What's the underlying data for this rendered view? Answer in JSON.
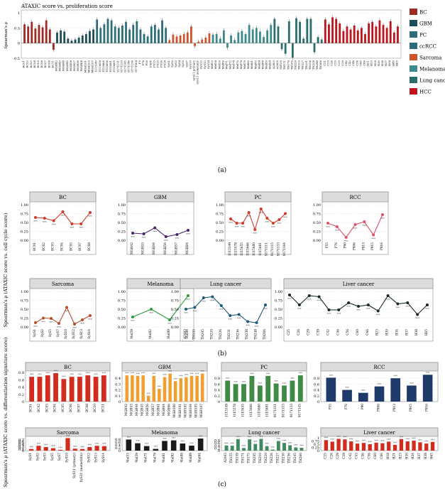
{
  "panel_labels": {
    "a": "(a)",
    "b": "(b)",
    "c": "(c)"
  },
  "colors": {
    "BC": "#9e2a24",
    "GBM": "#1c4e57",
    "PC": "#2d6e78",
    "ccRCC": "#2b6d7a",
    "Sarcoma": "#d0542b",
    "Melanoma": "#3d8a8a",
    "Lung cancer": "#2a6e6c",
    "HCC": "#c0141c"
  },
  "legend_a": [
    {
      "name": "BC",
      "color": "#9e2a24"
    },
    {
      "name": "GBM",
      "color": "#1c4e57"
    },
    {
      "name": "PC",
      "color": "#2d6e78"
    },
    {
      "name": "ccRCC",
      "color": "#2b6d7a"
    },
    {
      "name": "Sarcoma",
      "color": "#d0542b"
    },
    {
      "name": "Melanoma",
      "color": "#3d8a8a"
    },
    {
      "name": "Lung cancer",
      "color": "#2a6e6c"
    },
    {
      "name": "HCC",
      "color": "#c0141c"
    }
  ],
  "chart_data": [
    {
      "id": "a",
      "type": "bar",
      "title": "ATAXIC score vs. proliferation score",
      "ylabel": "Spearman's ρ",
      "ylim": [
        -0.5,
        1.0
      ],
      "yticks": [
        -0.5,
        0,
        0.5,
        1.0
      ],
      "groups": [
        {
          "name": "BC",
          "categories": [
            "BC01",
            "BC02",
            "BC03",
            "BC04",
            "BC05",
            "BC06",
            "BC07",
            "BC08"
          ],
          "values": [
            0.62,
            0.55,
            0.7,
            0.48,
            0.6,
            0.52,
            0.75,
            0.45
          ]
        },
        {
          "name": "BC",
          "categories": [
            "BC11"
          ],
          "values": [
            -0.22
          ]
        },
        {
          "name": "GBM",
          "categories": [
            "MGH42",
            "MGH43",
            "MGH44",
            "MGH45",
            "MGH56",
            "MGH57",
            "MGH58",
            "MGH64",
            "MGH101",
            "MGH103",
            "MGH107"
          ],
          "values": [
            0.35,
            0.42,
            0.38,
            0.15,
            0.08,
            0.12,
            0.18,
            0.25,
            0.3,
            0.4,
            0.45
          ]
        },
        {
          "name": "PC",
          "categories": [
            "1113149",
            "1113658",
            "1113666",
            "1115656",
            "1115681",
            "1115689",
            "9171111",
            "9171133",
            "9171145",
            "9171146",
            "9171156",
            "9171164"
          ],
          "values": [
            0.78,
            0.5,
            0.62,
            0.8,
            0.75,
            0.55,
            0.5,
            0.58,
            0.7,
            0.45,
            0.6,
            0.72
          ]
        },
        {
          "name": "ccRCC",
          "categories": [
            "P5",
            "P76",
            "P90",
            "P906",
            "P913",
            "P915",
            "P916",
            "P918"
          ],
          "values": [
            0.45,
            0.3,
            0.22,
            0.55,
            0.6,
            0.45,
            0.75,
            0.5
          ]
        },
        {
          "name": "Sarcoma",
          "categories": [
            "SyS1",
            "SyS2",
            "SyS3",
            "SyS4",
            "SyS5",
            "SyS7",
            "SyS10",
            "SyS11 primary",
            "SyS11 metastatic",
            "SyS12",
            "SyS13",
            "SyS14"
          ],
          "values": [
            0.1,
            0.28,
            0.22,
            0.25,
            0.3,
            0.35,
            0.55,
            -0.1,
            0.05,
            0.12,
            0.18,
            0.32
          ]
        },
        {
          "name": "Melanoma",
          "categories": [
            "Mel53",
            "Mel58",
            "Mel59",
            "Mel60",
            "Mel71",
            "Mel72",
            "Mel74",
            "Mel75",
            "Mel78",
            "Mel79",
            "Mel80",
            "Mel81",
            "Mel82",
            "Mel84",
            "Mel88",
            "Mel89",
            "Mel94"
          ],
          "values": [
            0.28,
            0.3,
            0.15,
            0.42,
            -0.15,
            0.25,
            0.1,
            0.35,
            0.4,
            0.3,
            0.6,
            0.45,
            0.5,
            0.38,
            0.2,
            0.42,
            0.6
          ]
        },
        {
          "name": "Lung cancer",
          "categories": [
            "A2003",
            "A2009",
            "TH155",
            "TH171",
            "TH179",
            "TH185",
            "TH220",
            "TH225",
            "TH227",
            "TH231",
            "TH236",
            "TH238",
            "TH248",
            "TH266"
          ],
          "values": [
            0.8,
            0.55,
            -0.2,
            -0.35,
            0.72,
            -0.48,
            0.82,
            0.7,
            0.15,
            0.8,
            0.8,
            -0.3,
            0.2,
            0.12
          ]
        },
        {
          "name": "HCC",
          "categories": [
            "C21",
            "C25",
            "C26",
            "C29",
            "C35",
            "C39",
            "C42",
            "C43",
            "C46",
            "C56",
            "C60",
            "C66",
            "H21",
            "H23",
            "H28",
            "H30",
            "H34",
            "H37",
            "H38",
            "H49",
            "H65"
          ],
          "values": [
            0.78,
            0.62,
            0.85,
            0.8,
            0.65,
            0.4,
            0.55,
            0.45,
            0.58,
            0.42,
            0.5,
            0.3,
            0.65,
            0.7,
            0.55,
            0.75,
            0.6,
            0.5,
            0.72,
            0.35,
            0.55
          ]
        }
      ]
    },
    {
      "id": "b",
      "type": "line",
      "ylabel": "Spearman's ρ (ATAXIC score vs. cell cycle score)",
      "panels": [
        {
          "title": "BC",
          "color": "#d13b2a",
          "ylim": [
            0,
            1.0
          ],
          "yticks": [
            0,
            0.25,
            0.5,
            0.75,
            1.0
          ],
          "categories": [
            "BC01",
            "BC02",
            "BC03",
            "BC04",
            "BC05",
            "BC07",
            "BC08"
          ],
          "values": [
            0.64,
            0.62,
            0.55,
            0.8,
            0.46,
            0.46,
            0.78
          ]
        },
        {
          "title": "GBM",
          "color": "#4b2366",
          "ylim": [
            0,
            1.0
          ],
          "yticks": [
            0,
            0.25,
            0.5,
            0.75,
            1.0
          ],
          "categories": [
            "MGH42",
            "MGH43",
            "MGH44",
            "MGH56",
            "MGH57",
            "MGH64"
          ],
          "values": [
            0.2,
            0.18,
            0.35,
            0.1,
            0.16,
            0.28
          ]
        },
        {
          "title": "PC",
          "color": "#d13b2a",
          "ylim": [
            0,
            1.0
          ],
          "yticks": [
            0,
            0.25,
            0.5,
            0.75,
            1.0
          ],
          "categories": [
            "1113149",
            "1115578",
            "1115655",
            "1115666",
            "1115680",
            "1115681",
            "9171111",
            "9171115",
            "9171133",
            "9171164"
          ],
          "values": [
            0.6,
            0.48,
            0.48,
            0.78,
            0.3,
            0.88,
            0.62,
            0.48,
            0.58,
            0.75
          ]
        },
        {
          "title": "RCC",
          "color": "#e0506a",
          "ylim": [
            0,
            1.0
          ],
          "yticks": [
            0,
            0.25,
            0.5,
            0.75,
            1.0
          ],
          "categories": [
            "P55",
            "P76",
            "P90",
            "P906",
            "P913",
            "P915",
            "P916"
          ],
          "values": [
            0.48,
            0.38,
            0.08,
            0.44,
            0.52,
            0.15,
            0.72
          ]
        },
        {
          "title": "Sarcoma",
          "color": "#b6502b",
          "ylim": [
            0,
            1.0
          ],
          "yticks": [
            0,
            0.25,
            0.5,
            0.75,
            1.0
          ],
          "categories": [
            "SyS1",
            "SyS2",
            "SyS5",
            "SyS7",
            "SyS10",
            "SyS12",
            "SyS13",
            "SyS14"
          ],
          "values": [
            0.12,
            0.25,
            0.24,
            0.1,
            0.55,
            0.08,
            0.2,
            0.32
          ]
        },
        {
          "title": "Melanoma",
          "color": "#2f9a3c",
          "ylim": [
            0,
            1.0
          ],
          "yticks": [
            0,
            0.25,
            0.5,
            0.75,
            1.0
          ],
          "categories": [
            "Mel59",
            "Mel82",
            "Mel89",
            "Mel94"
          ],
          "values": [
            0.28,
            0.5,
            0.2,
            0.88
          ]
        },
        {
          "title": "Lung cancer",
          "color": "#1f5a78",
          "ylim": [
            0,
            1.0
          ],
          "yticks": [
            0,
            0.25,
            0.5,
            0.75,
            1.0
          ],
          "categories": [
            "A2003",
            "TH155",
            "TH205",
            "TH220",
            "TH226",
            "TH231",
            "TH236",
            "TH238",
            "TH248",
            "TH266"
          ],
          "values": [
            0.5,
            0.55,
            0.82,
            0.85,
            0.6,
            0.32,
            0.35,
            0.15,
            0.12,
            0.62
          ]
        },
        {
          "title": "Liver cancer",
          "color": "#1a2a20",
          "ylim": [
            0,
            1.0
          ],
          "yticks": [
            0,
            0.25,
            0.5,
            0.75,
            1.0
          ],
          "categories": [
            "C25",
            "C26",
            "C29",
            "C39",
            "C42",
            "C46",
            "C56",
            "C60",
            "C66",
            "H23",
            "H30",
            "H34",
            "H37",
            "H38",
            "H65"
          ],
          "values": [
            0.9,
            0.62,
            0.88,
            0.85,
            0.48,
            0.48,
            0.68,
            0.58,
            0.62,
            0.45,
            0.88,
            0.65,
            0.68,
            0.35,
            0.62
          ]
        }
      ]
    },
    {
      "id": "c",
      "type": "bar",
      "ylabel": "Spearman's ρ (ATAXIC score vs. differentiation signature score)",
      "panels": [
        {
          "title": "BC",
          "color": "#d12c1e",
          "ylim": [
            0,
            0.8
          ],
          "yticks": [
            0,
            0.2,
            0.4,
            0.6,
            0.8
          ],
          "categories": [
            "BC01",
            "BC02",
            "BC03",
            "BC04",
            "BC05",
            "BC06",
            "BC07",
            "BC08",
            "BC10",
            "BC11"
          ],
          "values": [
            0.68,
            0.68,
            0.72,
            0.78,
            0.62,
            0.68,
            0.68,
            0.72,
            0.68,
            0.72
          ]
        },
        {
          "title": "GBM",
          "color": "#f0a030",
          "ylim": [
            0,
            0.5
          ],
          "yticks": [
            0,
            0.1,
            0.2,
            0.3,
            0.4
          ],
          "categories": [
            "MGH42",
            "MGH43",
            "MGH44",
            "MGH45",
            "MGH56",
            "MGH57",
            "MGH61",
            "MGH64",
            "MGH66",
            "MGH100",
            "MGH101",
            "MGH102",
            "MGH104",
            "MGH105",
            "MGH107"
          ],
          "values": [
            0.45,
            0.45,
            0.44,
            0.45,
            0.1,
            0.44,
            0.22,
            0.42,
            0.48,
            0.35,
            0.4,
            0.42,
            0.44,
            0.44,
            0.48
          ]
        },
        {
          "title": "PC",
          "color": "#3f8a44",
          "ylim": [
            0,
            1.0
          ],
          "yticks": [
            0,
            0.2,
            0.4,
            0.6,
            0.8
          ],
          "categories": [
            "1113149",
            "1115578",
            "1115655",
            "1115666",
            "1115680",
            "1115681",
            "9171111",
            "9171115",
            "9171133",
            "9171145"
          ],
          "values": [
            0.72,
            0.6,
            0.6,
            0.88,
            0.55,
            0.88,
            0.62,
            0.55,
            0.72,
            0.9
          ]
        },
        {
          "title": "RCC",
          "color": "#1d3a6b",
          "ylim": [
            0,
            1.0
          ],
          "yticks": [
            0,
            0.2,
            0.4,
            0.6,
            0.8
          ],
          "categories": [
            "P55",
            "P76",
            "P90",
            "P906",
            "P913",
            "P915",
            "P916"
          ],
          "values": [
            0.82,
            0.4,
            0.3,
            0.52,
            0.8,
            0.55,
            0.92
          ]
        },
        {
          "title": "Sarcoma",
          "color": "#d12c1e",
          "ylim": [
            0,
            0.8
          ],
          "yticks": [
            0,
            0.1,
            0.2,
            0.3,
            0.4,
            0.5,
            0.6,
            0.7
          ],
          "categories": [
            "SyS1",
            "SyS2",
            "SyS3",
            "SyS5",
            "SyS7",
            "SyS10",
            "SyS11 (primary)",
            "SyS11 (metastatic)",
            "SyS12",
            "SyS13",
            "SyS14"
          ],
          "values": [
            0.1,
            0.3,
            0.22,
            0.15,
            0.05,
            0.78,
            0.12,
            0.1,
            0.22,
            0.3,
            0.28
          ]
        },
        {
          "title": "Melanoma",
          "color": "#1a1a1a",
          "ylim": [
            0,
            0.9
          ],
          "yticks": [
            0,
            0.2,
            0.4,
            0.6,
            0.8
          ],
          "categories": [
            "Mel53",
            "Mel59",
            "Mel71",
            "Mel79",
            "Mel81",
            "Mel82",
            "Mel88",
            "Mel89",
            "Mel94"
          ],
          "values": [
            0.78,
            0.52,
            0.32,
            0.12,
            0.68,
            0.72,
            0.5,
            0.35,
            0.85
          ]
        },
        {
          "title": "Lung cancer",
          "color": "#3f8a60",
          "ylim": [
            0,
            1.0
          ],
          "yticks": [
            0,
            0.2,
            0.4,
            0.6,
            0.8
          ],
          "categories": [
            "A2003",
            "TH155",
            "TH159",
            "TH171",
            "TH175",
            "TH205",
            "TH210",
            "TH220",
            "TH226",
            "TH227",
            "TH230",
            "TH236",
            "TH245",
            "TH266"
          ],
          "values": [
            0.4,
            0.38,
            0.9,
            0.2,
            0.88,
            0.52,
            0.92,
            0.35,
            0.08,
            0.75,
            0.6,
            0.42,
            0.25,
            0.22
          ]
        },
        {
          "title": "Liver cancer",
          "color": "#d12c1e",
          "ylim": [
            0,
            1.0
          ],
          "yticks": [
            0,
            0.25,
            0.5,
            0.75,
            1.0
          ],
          "categories": [
            "C25",
            "C26",
            "C29",
            "C39",
            "C42",
            "C43",
            "C46",
            "C56",
            "C60",
            "C66",
            "H18",
            "H21",
            "H23",
            "H30",
            "H34",
            "H37",
            "H38",
            "H65"
          ],
          "values": [
            0.82,
            0.7,
            0.92,
            0.88,
            0.72,
            0.55,
            0.6,
            0.5,
            0.62,
            0.58,
            0.7,
            0.45,
            0.9,
            0.72,
            0.78,
            0.65,
            0.55,
            0.68
          ]
        }
      ]
    }
  ]
}
